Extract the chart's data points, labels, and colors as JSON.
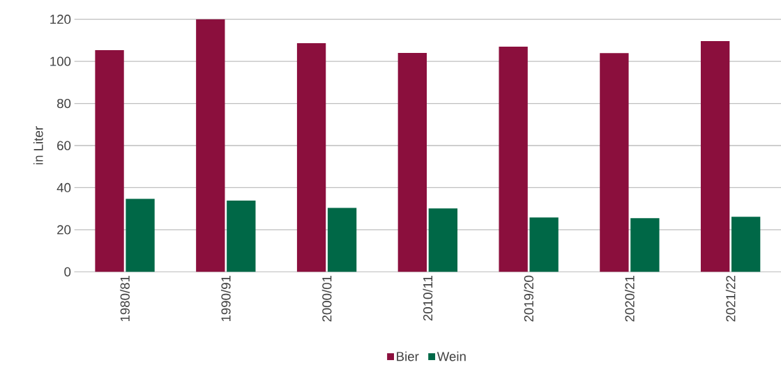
{
  "chart_data": {
    "type": "bar",
    "ylabel": "in Liter",
    "categories": [
      "1980/81",
      "1990/91",
      "2000/01",
      "2010/11",
      "2019/20",
      "2020/21",
      "2021/22"
    ],
    "series": [
      {
        "name": "Bier",
        "color": "#8b0f3d",
        "values": [
          105.3,
          120,
          108.6,
          104.0,
          107.0,
          103.9,
          109.6
        ]
      },
      {
        "name": "Wein",
        "color": "#006847",
        "values": [
          34.7,
          33.9,
          30.4,
          30.1,
          25.8,
          25.5,
          26.2
        ]
      }
    ],
    "ylim": [
      0,
      120
    ],
    "yticks": [
      0,
      20,
      40,
      60,
      80,
      100,
      120
    ],
    "grid": "y",
    "legend": "bottom"
  }
}
